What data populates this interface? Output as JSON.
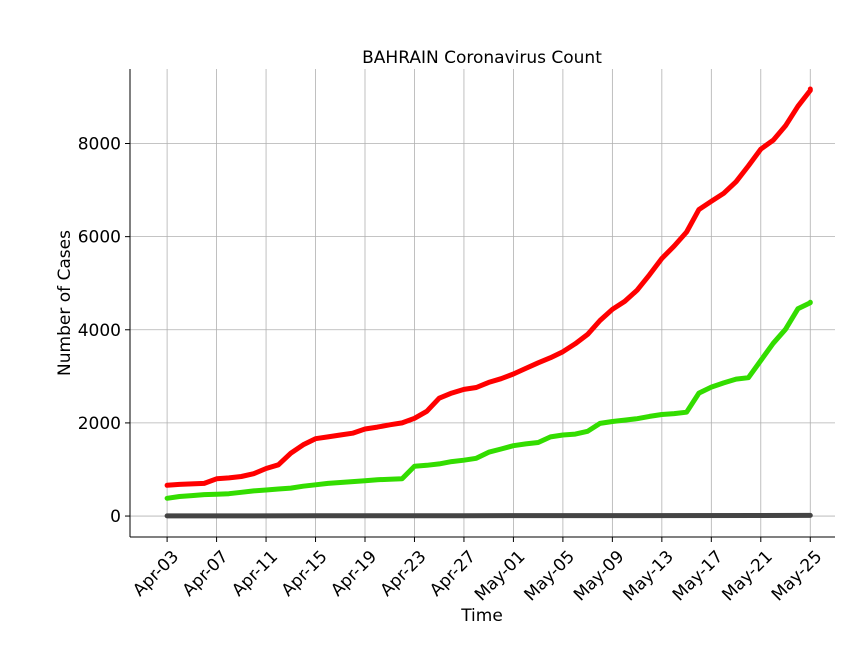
{
  "chart_data": {
    "type": "line",
    "title": "BAHRAIN Coronavirus Count",
    "xlabel": "Time",
    "ylabel": "Number of Cases",
    "x_start": "2020-04-03",
    "x_end": "2020-05-25",
    "xlim": [
      "2020-03-31",
      "2020-05-27"
    ],
    "ylim": [
      -450,
      9600
    ],
    "grid": true,
    "x_ticks": [
      {
        "date": "2020-04-03",
        "label": "Apr-03"
      },
      {
        "date": "2020-04-07",
        "label": "Apr-07"
      },
      {
        "date": "2020-04-11",
        "label": "Apr-11"
      },
      {
        "date": "2020-04-15",
        "label": "Apr-15"
      },
      {
        "date": "2020-04-19",
        "label": "Apr-19"
      },
      {
        "date": "2020-04-23",
        "label": "Apr-23"
      },
      {
        "date": "2020-04-27",
        "label": "Apr-27"
      },
      {
        "date": "2020-05-01",
        "label": "May-01"
      },
      {
        "date": "2020-05-05",
        "label": "May-05"
      },
      {
        "date": "2020-05-09",
        "label": "May-09"
      },
      {
        "date": "2020-05-13",
        "label": "May-13"
      },
      {
        "date": "2020-05-17",
        "label": "May-17"
      },
      {
        "date": "2020-05-21",
        "label": "May-21"
      },
      {
        "date": "2020-05-25",
        "label": "May-25"
      }
    ],
    "y_ticks": [
      {
        "value": 0,
        "label": "0"
      },
      {
        "value": 2000,
        "label": "2000"
      },
      {
        "value": 4000,
        "label": "4000"
      },
      {
        "value": 6000,
        "label": "6000"
      },
      {
        "value": 8000,
        "label": "8000"
      }
    ],
    "series": [
      {
        "color": "#ff0000",
        "points": [
          [
            "2020-04-03",
            660
          ],
          [
            "2020-04-04",
            680
          ],
          [
            "2020-04-05",
            690
          ],
          [
            "2020-04-06",
            700
          ],
          [
            "2020-04-07",
            800
          ],
          [
            "2020-04-08",
            820
          ],
          [
            "2020-04-09",
            850
          ],
          [
            "2020-04-10",
            910
          ],
          [
            "2020-04-11",
            1020
          ],
          [
            "2020-04-12",
            1100
          ],
          [
            "2020-04-13",
            1350
          ],
          [
            "2020-04-14",
            1530
          ],
          [
            "2020-04-15",
            1660
          ],
          [
            "2020-04-16",
            1700
          ],
          [
            "2020-04-17",
            1740
          ],
          [
            "2020-04-18",
            1780
          ],
          [
            "2020-04-19",
            1870
          ],
          [
            "2020-04-20",
            1910
          ],
          [
            "2020-04-21",
            1960
          ],
          [
            "2020-04-22",
            2000
          ],
          [
            "2020-04-23",
            2100
          ],
          [
            "2020-04-24",
            2250
          ],
          [
            "2020-04-25",
            2530
          ],
          [
            "2020-04-26",
            2640
          ],
          [
            "2020-04-27",
            2720
          ],
          [
            "2020-04-28",
            2760
          ],
          [
            "2020-04-29",
            2870
          ],
          [
            "2020-04-30",
            2950
          ],
          [
            "2020-05-01",
            3050
          ],
          [
            "2020-05-02",
            3170
          ],
          [
            "2020-05-03",
            3290
          ],
          [
            "2020-05-04",
            3400
          ],
          [
            "2020-05-05",
            3530
          ],
          [
            "2020-05-06",
            3700
          ],
          [
            "2020-05-07",
            3900
          ],
          [
            "2020-05-08",
            4200
          ],
          [
            "2020-05-09",
            4440
          ],
          [
            "2020-05-10",
            4610
          ],
          [
            "2020-05-11",
            4850
          ],
          [
            "2020-05-12",
            5180
          ],
          [
            "2020-05-13",
            5530
          ],
          [
            "2020-05-14",
            5800
          ],
          [
            "2020-05-15",
            6100
          ],
          [
            "2020-05-16",
            6580
          ],
          [
            "2020-05-17",
            6760
          ],
          [
            "2020-05-18",
            6930
          ],
          [
            "2020-05-19",
            7180
          ],
          [
            "2020-05-20",
            7520
          ],
          [
            "2020-05-21",
            7880
          ],
          [
            "2020-05-22",
            8070
          ],
          [
            "2020-05-23",
            8380
          ],
          [
            "2020-05-24",
            8800
          ],
          [
            "2020-05-25",
            9140
          ],
          [
            "2020-05-25",
            9170
          ]
        ]
      },
      {
        "color": "#33dd00",
        "points": [
          [
            "2020-04-03",
            380
          ],
          [
            "2020-04-04",
            420
          ],
          [
            "2020-04-05",
            440
          ],
          [
            "2020-04-06",
            460
          ],
          [
            "2020-04-07",
            470
          ],
          [
            "2020-04-08",
            480
          ],
          [
            "2020-04-09",
            510
          ],
          [
            "2020-04-10",
            540
          ],
          [
            "2020-04-11",
            560
          ],
          [
            "2020-04-12",
            580
          ],
          [
            "2020-04-13",
            600
          ],
          [
            "2020-04-14",
            640
          ],
          [
            "2020-04-15",
            670
          ],
          [
            "2020-04-16",
            700
          ],
          [
            "2020-04-17",
            720
          ],
          [
            "2020-04-18",
            740
          ],
          [
            "2020-04-19",
            760
          ],
          [
            "2020-04-20",
            780
          ],
          [
            "2020-04-21",
            790
          ],
          [
            "2020-04-22",
            800
          ],
          [
            "2020-04-23",
            1070
          ],
          [
            "2020-04-24",
            1090
          ],
          [
            "2020-04-25",
            1120
          ],
          [
            "2020-04-26",
            1170
          ],
          [
            "2020-04-27",
            1200
          ],
          [
            "2020-04-28",
            1240
          ],
          [
            "2020-04-29",
            1370
          ],
          [
            "2020-04-30",
            1440
          ],
          [
            "2020-05-01",
            1510
          ],
          [
            "2020-05-02",
            1550
          ],
          [
            "2020-05-03",
            1580
          ],
          [
            "2020-05-04",
            1700
          ],
          [
            "2020-05-05",
            1740
          ],
          [
            "2020-05-06",
            1760
          ],
          [
            "2020-05-07",
            1820
          ],
          [
            "2020-05-08",
            1990
          ],
          [
            "2020-05-09",
            2030
          ],
          [
            "2020-05-10",
            2060
          ],
          [
            "2020-05-11",
            2090
          ],
          [
            "2020-05-12",
            2140
          ],
          [
            "2020-05-13",
            2180
          ],
          [
            "2020-05-14",
            2200
          ],
          [
            "2020-05-15",
            2230
          ],
          [
            "2020-05-16",
            2640
          ],
          [
            "2020-05-17",
            2770
          ],
          [
            "2020-05-18",
            2860
          ],
          [
            "2020-05-19",
            2940
          ],
          [
            "2020-05-20",
            2970
          ],
          [
            "2020-05-21",
            3340
          ],
          [
            "2020-05-22",
            3710
          ],
          [
            "2020-05-23",
            4010
          ],
          [
            "2020-05-24",
            4450
          ],
          [
            "2020-05-25",
            4580
          ],
          [
            "2020-05-25",
            4590
          ]
        ]
      },
      {
        "color": "#444444",
        "points": [
          [
            "2020-04-03",
            4
          ],
          [
            "2020-04-15",
            6
          ],
          [
            "2020-04-27",
            8
          ],
          [
            "2020-05-09",
            10
          ],
          [
            "2020-05-21",
            12
          ],
          [
            "2020-05-25",
            14
          ]
        ]
      }
    ]
  }
}
